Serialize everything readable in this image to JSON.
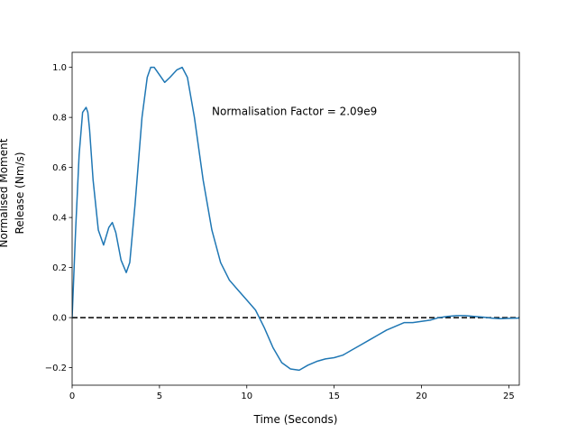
{
  "chart_data": {
    "type": "line",
    "title": "",
    "xlabel": "Time (Seconds)",
    "ylabel": "Normalised Moment Release (Nm/s)",
    "ylabel_lines": [
      "Normalised Moment",
      "Release (Nm/s)"
    ],
    "xlim": [
      0,
      25.6
    ],
    "ylim": [
      -0.27,
      1.06
    ],
    "xticks": [
      0,
      5,
      10,
      15,
      20,
      25
    ],
    "xtick_labels": [
      "0",
      "5",
      "10",
      "15",
      "20",
      "25"
    ],
    "yticks": [
      -0.2,
      0.0,
      0.2,
      0.4,
      0.6,
      0.8,
      1.0
    ],
    "ytick_labels": [
      "−0.2",
      "0.0",
      "0.2",
      "0.4",
      "0.6",
      "0.8",
      "1.0"
    ],
    "grid": false,
    "annotation": {
      "text": "Normalisation Factor = 2.09e9",
      "x": 8.0,
      "y": 0.81
    },
    "reference_line": {
      "y": 0.0,
      "style": "dashed",
      "color": "#000000"
    },
    "series": [
      {
        "color": "#1f77b4",
        "x": [
          0.0,
          0.2,
          0.4,
          0.6,
          0.8,
          0.9,
          1.0,
          1.2,
          1.5,
          1.8,
          2.1,
          2.3,
          2.5,
          2.8,
          3.1,
          3.3,
          3.6,
          4.0,
          4.3,
          4.5,
          4.7,
          5.0,
          5.3,
          5.6,
          6.0,
          6.3,
          6.6,
          7.0,
          7.5,
          8.0,
          8.5,
          9.0,
          9.5,
          10.0,
          10.5,
          11.0,
          11.5,
          12.0,
          12.5,
          13.0,
          13.5,
          14.0,
          14.5,
          15.0,
          15.5,
          16.0,
          16.5,
          17.0,
          17.5,
          18.0,
          18.5,
          19.0,
          19.5,
          20.0,
          20.5,
          21.0,
          21.5,
          22.0,
          22.5,
          23.0,
          23.5,
          24.0,
          24.5,
          25.0,
          25.6
        ],
        "y": [
          0.0,
          0.35,
          0.65,
          0.82,
          0.84,
          0.82,
          0.75,
          0.55,
          0.35,
          0.29,
          0.36,
          0.38,
          0.34,
          0.23,
          0.18,
          0.22,
          0.45,
          0.8,
          0.96,
          1.0,
          1.0,
          0.97,
          0.94,
          0.96,
          0.99,
          1.0,
          0.96,
          0.8,
          0.55,
          0.35,
          0.22,
          0.15,
          0.11,
          0.07,
          0.03,
          -0.04,
          -0.12,
          -0.18,
          -0.205,
          -0.21,
          -0.19,
          -0.175,
          -0.165,
          -0.16,
          -0.15,
          -0.13,
          -0.11,
          -0.09,
          -0.07,
          -0.05,
          -0.035,
          -0.02,
          -0.02,
          -0.015,
          -0.01,
          0.0,
          0.005,
          0.008,
          0.008,
          0.005,
          0.002,
          -0.002,
          -0.004,
          -0.003,
          -0.002
        ]
      }
    ]
  }
}
